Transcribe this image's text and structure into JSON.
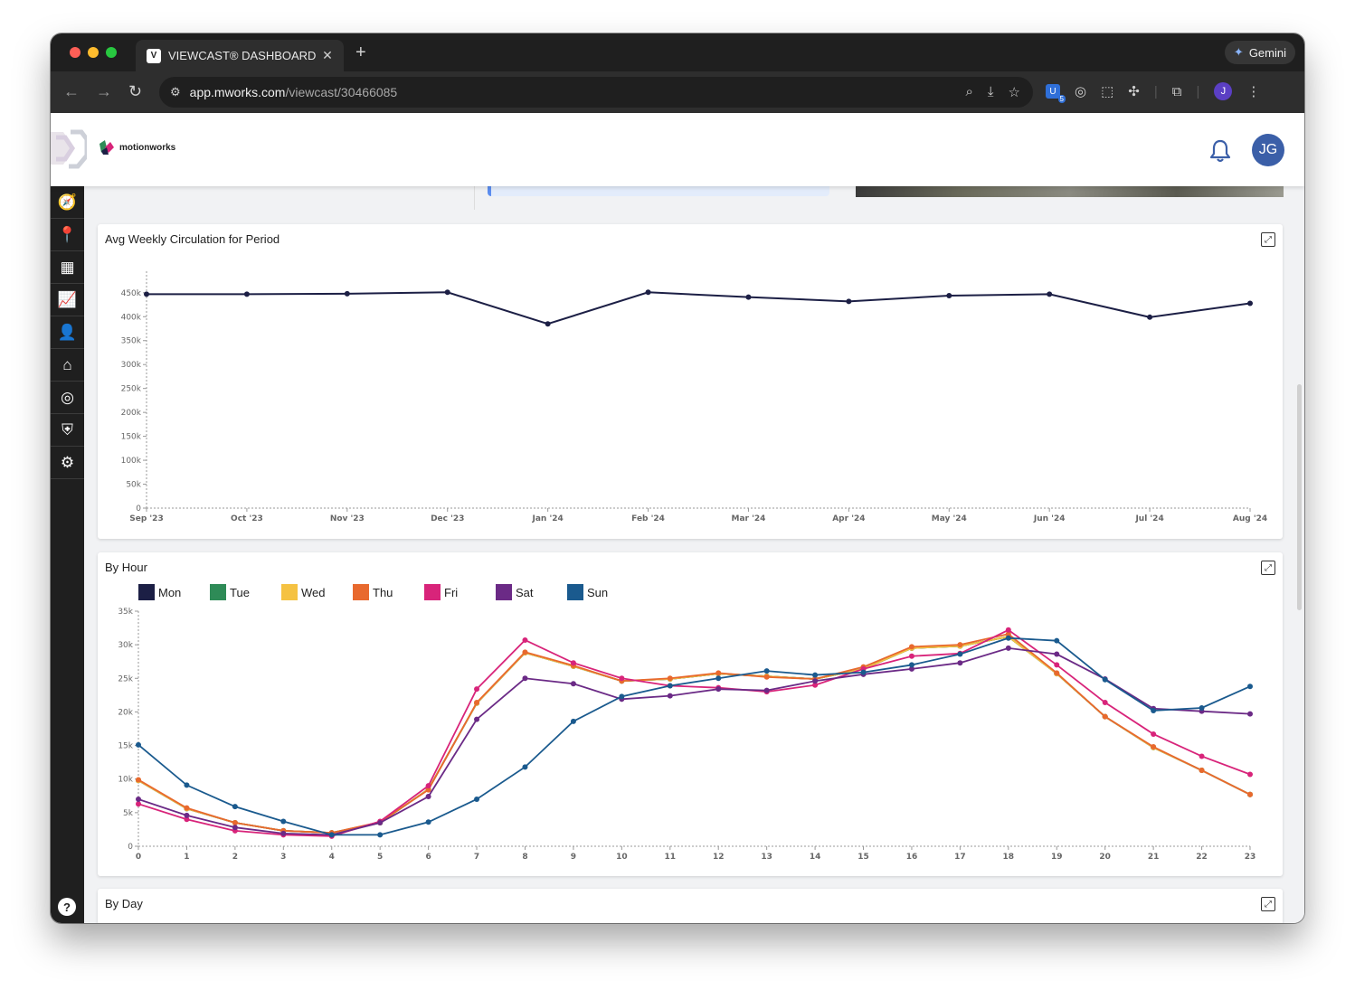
{
  "browser": {
    "tab_title": "VIEWCAST® DASHBOARD :: M",
    "tab_favicon": "viewcast-logo",
    "gemini_label": "Gemini",
    "url_host": "app.mworks.com",
    "url_path": "/viewcast/30466085",
    "ext_badge": "5",
    "profile_initial": "J"
  },
  "header": {
    "brand": "motionworks",
    "avatar_initials": "JG",
    "icons": [
      "bell-icon"
    ]
  },
  "sidebar": {
    "items": [
      "compass-icon",
      "map-pin-icon",
      "grid-icon",
      "trend-chart-icon",
      "audience-icon",
      "home-chart-icon",
      "target-icon",
      "shield-icon",
      "user-settings-icon"
    ],
    "help_label": "?"
  },
  "panels": {
    "weekly": {
      "title": "Avg Weekly Circulation for Period"
    },
    "hourly": {
      "title": "By Hour"
    },
    "daily": {
      "title": "By Day"
    }
  },
  "chart_data": [
    {
      "type": "line",
      "title": "Avg Weekly Circulation for Period",
      "categories": [
        "Sep '23",
        "Oct '23",
        "Nov '23",
        "Dec '23",
        "Jan '24",
        "Feb '24",
        "Mar '24",
        "Apr '24",
        "May '24",
        "Jun '24",
        "Jul '24",
        "Aug '24"
      ],
      "values": [
        447000,
        447000,
        448000,
        451000,
        385000,
        451000,
        441000,
        432000,
        444000,
        447000,
        399000,
        428000
      ],
      "y_ticks": [
        "0",
        "50k",
        "100k",
        "150k",
        "200k",
        "250k",
        "300k",
        "350k",
        "400k",
        "450k"
      ],
      "ylim": [
        0,
        495000
      ],
      "color": "#1c1f45",
      "grid": false
    },
    {
      "type": "line",
      "title": "By Hour",
      "x": [
        0,
        1,
        2,
        3,
        4,
        5,
        6,
        7,
        8,
        9,
        10,
        11,
        12,
        13,
        14,
        15,
        16,
        17,
        18,
        19,
        20,
        21,
        22,
        23
      ],
      "y_ticks": [
        "0",
        "5k",
        "10k",
        "15k",
        "20k",
        "25k",
        "30k",
        "35k"
      ],
      "ylim": [
        0,
        35000
      ],
      "legend": "top-left",
      "grid": false,
      "series": [
        {
          "name": "Mon",
          "color": "#1c1f45",
          "values": [
            9800,
            5600,
            3500,
            2300,
            2000,
            3500,
            8500,
            21300,
            28800,
            26800,
            24600,
            24900,
            25700,
            25300,
            24900,
            26400,
            29500,
            29800,
            31200,
            25700,
            19300,
            14700,
            11300,
            7700
          ]
        },
        {
          "name": "Tue",
          "color": "#2e8b57",
          "values": [
            9800,
            5600,
            3500,
            2300,
            2000,
            3500,
            8500,
            21300,
            28800,
            26800,
            24600,
            24900,
            25700,
            25300,
            24900,
            26400,
            29500,
            29800,
            31200,
            25700,
            19300,
            14700,
            11300,
            7700
          ]
        },
        {
          "name": "Wed",
          "color": "#f5c242",
          "values": [
            9800,
            5600,
            3500,
            2300,
            2000,
            3500,
            8500,
            21300,
            28800,
            26800,
            24600,
            24900,
            25700,
            25300,
            24900,
            26400,
            29500,
            29800,
            31200,
            25700,
            19300,
            14700,
            11300,
            7700
          ]
        },
        {
          "name": "Thu",
          "color": "#e8692e",
          "values": [
            9900,
            5700,
            3500,
            2300,
            2000,
            3600,
            8400,
            21400,
            28900,
            26900,
            24600,
            25000,
            25800,
            25200,
            24900,
            26700,
            29700,
            30000,
            31600,
            25800,
            19300,
            14800,
            11300,
            7700
          ]
        },
        {
          "name": "Fri",
          "color": "#d8247a",
          "values": [
            6300,
            4000,
            2300,
            1700,
            1500,
            3700,
            9000,
            23400,
            30700,
            27300,
            25000,
            23900,
            23600,
            23000,
            24000,
            26400,
            28300,
            28700,
            32200,
            27000,
            21400,
            16700,
            13400,
            10700
          ]
        },
        {
          "name": "Sat",
          "color": "#6b2a86",
          "values": [
            7000,
            4600,
            2800,
            1900,
            1700,
            3500,
            7400,
            18900,
            25000,
            24200,
            21900,
            22400,
            23400,
            23200,
            24600,
            25600,
            26400,
            27300,
            29500,
            28600,
            24900,
            20500,
            20100,
            19700
          ]
        },
        {
          "name": "Sun",
          "color": "#1a5a8e",
          "values": [
            15100,
            9100,
            5900,
            3700,
            1700,
            1700,
            3600,
            7000,
            11800,
            18600,
            22300,
            23900,
            25000,
            26100,
            25500,
            25900,
            27000,
            28600,
            31000,
            30600,
            24800,
            20200,
            20600,
            23800
          ]
        }
      ]
    }
  ]
}
